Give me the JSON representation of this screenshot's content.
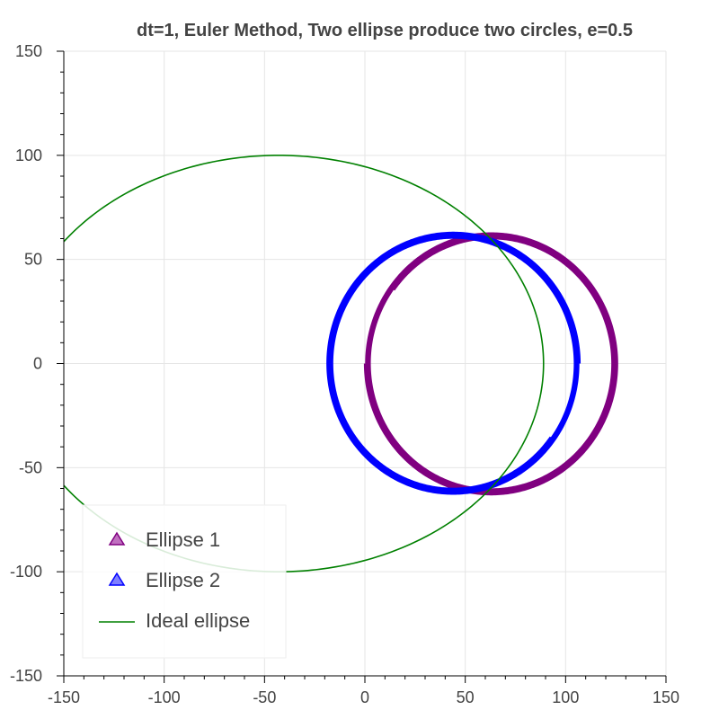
{
  "chart_data": {
    "type": "line",
    "title": "dt=1, Euler Method, Two ellipse produce two circles, e=0.5",
    "xlabel": "",
    "ylabel": "",
    "xlim": [
      -150,
      150
    ],
    "ylim": [
      -150,
      150
    ],
    "x_ticks": [
      -150,
      -100,
      -50,
      0,
      50,
      100,
      150
    ],
    "y_ticks": [
      -150,
      -100,
      -50,
      0,
      50,
      100,
      150
    ],
    "grid": true,
    "legend_position": "bottom-left",
    "series": [
      {
        "name": "Ellipse 1",
        "color": "#800080",
        "marker": "triangle",
        "curve": "spiral-circle",
        "center": [
          63,
          0
        ],
        "radius_start": 63,
        "radius_end": 60,
        "turns": 4.9,
        "start_angle_deg": 180
      },
      {
        "name": "Ellipse 2",
        "color": "#0000ff",
        "marker": "triangle",
        "curve": "spiral-circle",
        "center": [
          44,
          0
        ],
        "radius_start": 63,
        "radius_end": 60,
        "turns": 4.9,
        "start_angle_deg": 0
      },
      {
        "name": "Ideal ellipse",
        "color": "#008000",
        "marker": "line",
        "curve": "ellipse",
        "center": [
          -43,
          0
        ],
        "semi_major": 132,
        "semi_minor": 100
      }
    ]
  }
}
